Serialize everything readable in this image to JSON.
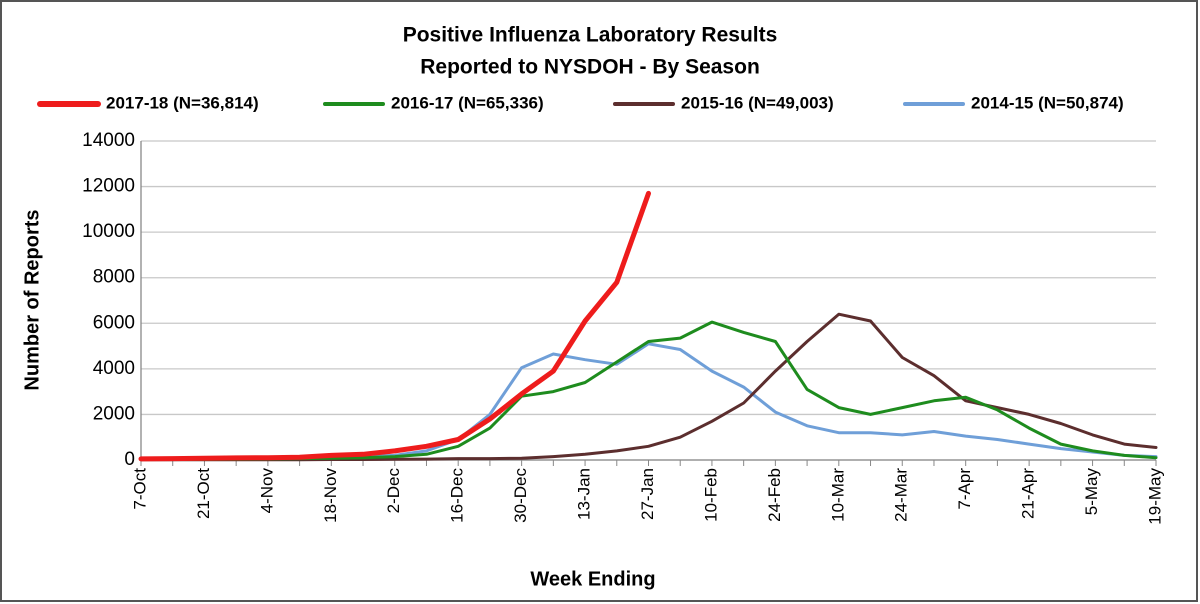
{
  "chart_data": {
    "type": "line",
    "title": [
      "Positive Influenza Laboratory Results",
      "Reported to NYSDOH - By Season"
    ],
    "x_label": "Week Ending",
    "y_label": "Number of Reports",
    "categories": [
      "7-Oct",
      null,
      "21-Oct",
      null,
      "4-Nov",
      null,
      "18-Nov",
      null,
      "2-Dec",
      null,
      "16-Dec",
      null,
      "30-Dec",
      null,
      "13-Jan",
      null,
      "27-Jan",
      null,
      "10-Feb",
      null,
      "24-Feb",
      null,
      "10-Mar",
      null,
      "24-Mar",
      null,
      "7-Apr",
      null,
      "21-Apr",
      null,
      "5-May",
      null,
      "19-May"
    ],
    "ylim": [
      0,
      14000
    ],
    "yticks": [
      0,
      2000,
      4000,
      6000,
      8000,
      10000,
      12000,
      14000
    ],
    "grid": true,
    "legend": "top",
    "series": [
      {
        "name": "2017-18 (N=36,814)",
        "color": "#ee1c1c",
        "width": 5,
        "values": [
          50,
          60,
          80,
          90,
          100,
          120,
          200,
          250,
          400,
          600,
          900,
          1800,
          2900,
          3900,
          6100,
          7800,
          11700,
          null,
          null,
          null,
          null,
          null,
          null,
          null,
          null,
          null,
          null,
          null,
          null,
          null,
          null,
          null,
          null
        ]
      },
      {
        "name": "2016-17 (N=65,336)",
        "color": "#1e8c1e",
        "width": 3,
        "values": [
          20,
          20,
          30,
          40,
          50,
          60,
          80,
          100,
          150,
          250,
          600,
          1400,
          2800,
          3000,
          3400,
          4300,
          5200,
          5350,
          6050,
          5600,
          5200,
          3100,
          2300,
          2000,
          2300,
          2600,
          2750,
          2200,
          1400,
          700,
          400,
          200,
          100
        ]
      },
      {
        "name": "2015-16 (N=49,003)",
        "color": "#5c2e2e",
        "width": 3,
        "values": [
          10,
          10,
          10,
          10,
          10,
          10,
          20,
          20,
          30,
          40,
          60,
          60,
          80,
          150,
          250,
          400,
          600,
          1000,
          1700,
          2500,
          3900,
          5200,
          6400,
          6100,
          4500,
          3700,
          2600,
          2300,
          2000,
          1600,
          1100,
          700,
          550
        ]
      },
      {
        "name": "2014-15 (N=50,874)",
        "color": "#6f9fd8",
        "width": 3,
        "values": [
          30,
          40,
          50,
          50,
          60,
          80,
          100,
          150,
          200,
          400,
          900,
          2000,
          4050,
          4650,
          4400,
          4200,
          5100,
          4850,
          3900,
          3200,
          2100,
          1500,
          1200,
          1200,
          1100,
          1250,
          1050,
          900,
          700,
          500,
          350,
          200,
          150
        ]
      }
    ]
  }
}
